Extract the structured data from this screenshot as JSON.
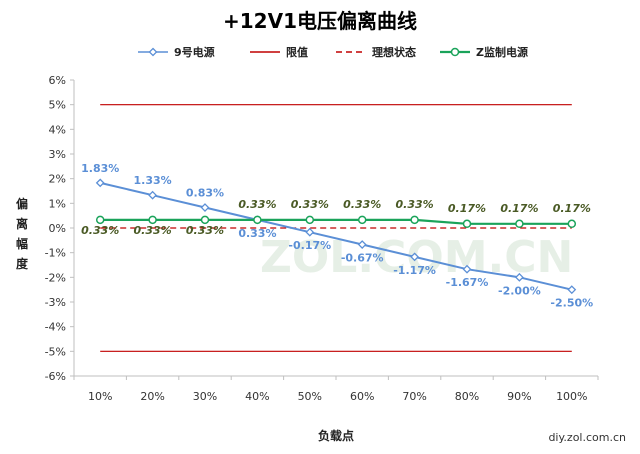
{
  "chart_data": {
    "type": "line",
    "title": "+12V1电压偏离曲线",
    "xlabel": "负载点",
    "ylabel": "偏离幅度",
    "categories": [
      "10%",
      "20%",
      "30%",
      "40%",
      "50%",
      "60%",
      "70%",
      "80%",
      "90%",
      "100%"
    ],
    "ylim": [
      -6,
      6
    ],
    "yticks": [
      "-6%",
      "-5%",
      "-4%",
      "-3%",
      "-2%",
      "-1%",
      "0%",
      "1%",
      "2%",
      "3%",
      "4%",
      "5%",
      "6%"
    ],
    "legend_position": "top",
    "grid": false,
    "series": [
      {
        "name": "9号电源",
        "values": [
          1.83,
          1.33,
          0.83,
          0.33,
          -0.17,
          -0.67,
          -1.17,
          -1.67,
          -2.0,
          -2.5
        ],
        "labels": [
          "1.83%",
          "1.33%",
          "0.83%",
          "0.33%",
          "-0.17%",
          "-0.67%",
          "-1.17%",
          "-1.67%",
          "-2.00%",
          "-2.50%"
        ],
        "color": "#5b8fd6",
        "marker": "diamond"
      },
      {
        "name": "限值",
        "values_upper": [
          5,
          5,
          5,
          5,
          5,
          5,
          5,
          5,
          5,
          5
        ],
        "values_lower": [
          -5,
          -5,
          -5,
          -5,
          -5,
          -5,
          -5,
          -5,
          -5,
          -5
        ],
        "color": "#c00000",
        "style": "solid"
      },
      {
        "name": "理想状态",
        "values": [
          0,
          0,
          0,
          0,
          0,
          0,
          0,
          0,
          0,
          0
        ],
        "color": "#c00000",
        "style": "dashed"
      },
      {
        "name": "Z监制电源",
        "values": [
          0.33,
          0.33,
          0.33,
          0.33,
          0.33,
          0.33,
          0.33,
          0.17,
          0.17,
          0.17
        ],
        "labels": [
          "0.33%",
          "0.33%",
          "0.33%",
          "0.33%",
          "0.33%",
          "0.33%",
          "0.33%",
          "0.17%",
          "0.17%",
          "0.17%"
        ],
        "color": "#1aa35a",
        "marker": "circle"
      }
    ]
  },
  "watermark": "ZOL.COM.CN",
  "source": "diy.zol.com.cn"
}
